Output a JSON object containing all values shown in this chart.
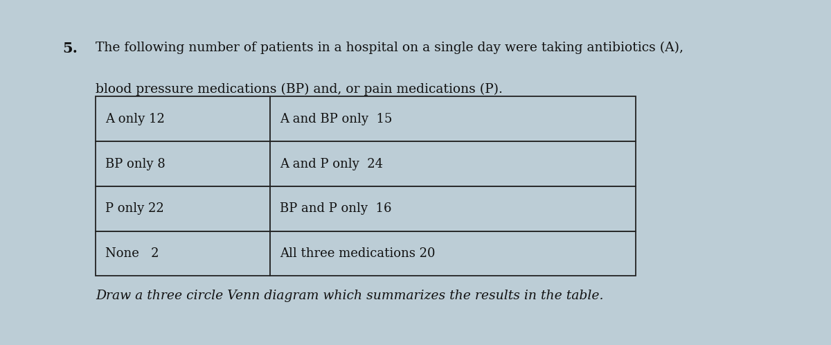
{
  "question_number": "5.",
  "question_text_line1": "The following number of patients in a hospital on a single day were taking antibiotics (A),",
  "question_text_line2": "blood pressure medications (BP) and, or pain medications (P).",
  "table": [
    [
      "A only 12",
      "A and BP only  15"
    ],
    [
      "BP only 8",
      "A and P only  24"
    ],
    [
      "P only 22",
      "BP and P only  16"
    ],
    [
      "None   2",
      "All three medications 20"
    ]
  ],
  "instruction": "Draw a three circle Venn diagram which summarizes the results in the table.",
  "bg_color": "#bccdd6",
  "text_color": "#111111",
  "font_size_question_num": 15,
  "font_size_question": 13.5,
  "font_size_table": 13,
  "font_size_instruction": 13.5
}
